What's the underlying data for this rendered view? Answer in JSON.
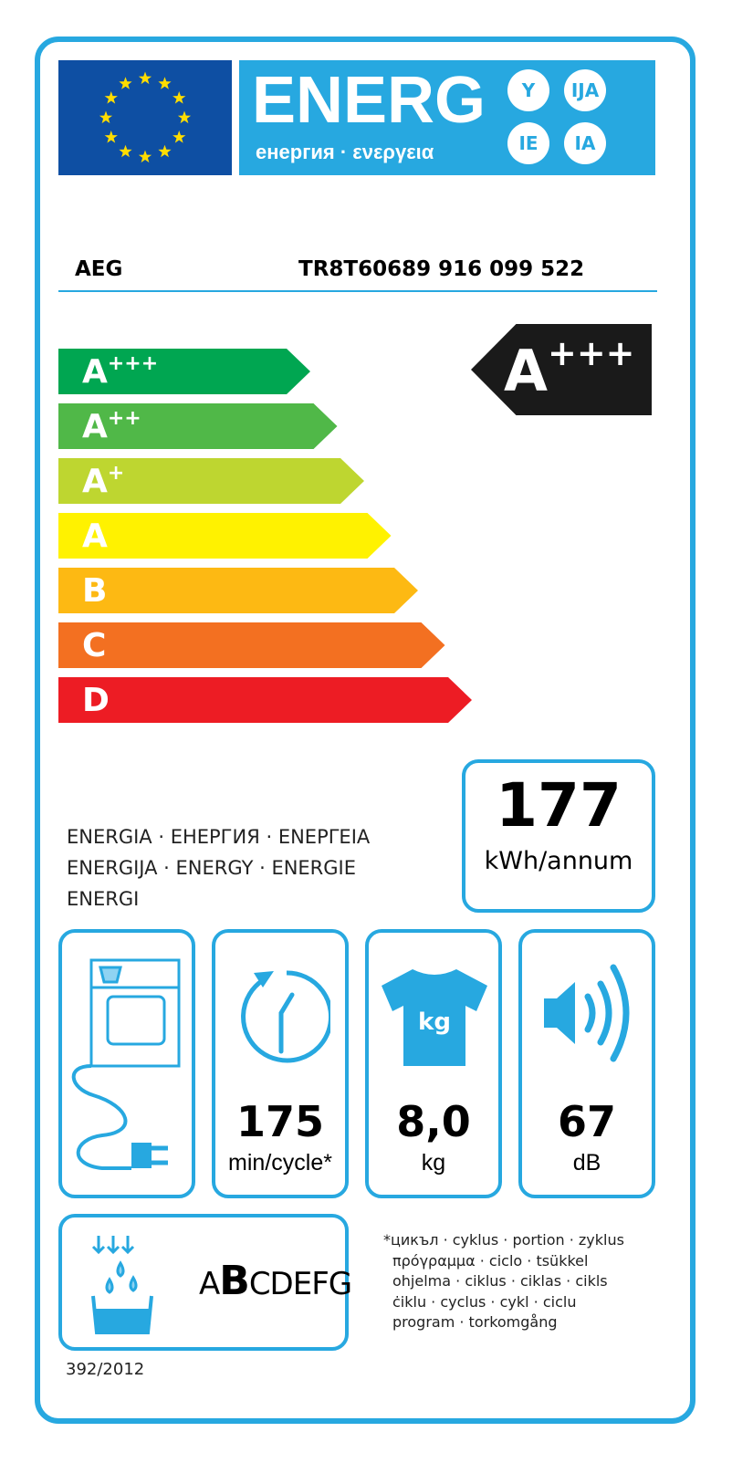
{
  "header": {
    "title": "ENERG",
    "subtitle": "енергия · ενεργεια",
    "suffixes": [
      "Y",
      "IJA",
      "IE",
      "IA"
    ],
    "colors": {
      "frame": "#27a8e0",
      "flag": "#0e4fa3",
      "stars": "#ffdd00"
    }
  },
  "supplier": {
    "name": "AEG",
    "model": "TR8T60689  916 099 522"
  },
  "scale": [
    {
      "class": "A",
      "plus": "+++",
      "color": "#00a651"
    },
    {
      "class": "A",
      "plus": "++",
      "color": "#50b848"
    },
    {
      "class": "A",
      "plus": "+",
      "color": "#bed630"
    },
    {
      "class": "A",
      "plus": "",
      "color": "#fff200"
    },
    {
      "class": "B",
      "plus": "",
      "color": "#fdb913"
    },
    {
      "class": "C",
      "plus": "",
      "color": "#f37021"
    },
    {
      "class": "D",
      "plus": "",
      "color": "#ed1c24"
    }
  ],
  "rating": {
    "class": "A",
    "plus": "+++",
    "color": "#1a1a1a"
  },
  "energy_words": [
    "ENERGIA · ЕНЕРГИЯ · ΕΝΕΡΓΕΙΑ",
    "ENERGIJA · ENERGY · ENERGIE",
    "ENERGI"
  ],
  "consumption": {
    "value": "177",
    "unit": "kWh/annum"
  },
  "specs": {
    "cycle_time": {
      "value": "175",
      "unit": "min/cycle*"
    },
    "capacity": {
      "value": "8,0",
      "unit": "kg",
      "icon_text": "kg"
    },
    "noise": {
      "value": "67",
      "unit": "dB"
    }
  },
  "condensation_class": {
    "prefix": "A",
    "selected": "B",
    "rest": "CDEFG"
  },
  "footnote": [
    "*цикъл · cyklus · portion · zyklus",
    "πρόγραμμα · ciclo · tsükkel",
    "ohjelma · ciklus · ciklas · cikls",
    "ċiklu · cyclus · cykl · ciclu",
    "program · torkomgång"
  ],
  "regulation": "392/2012"
}
